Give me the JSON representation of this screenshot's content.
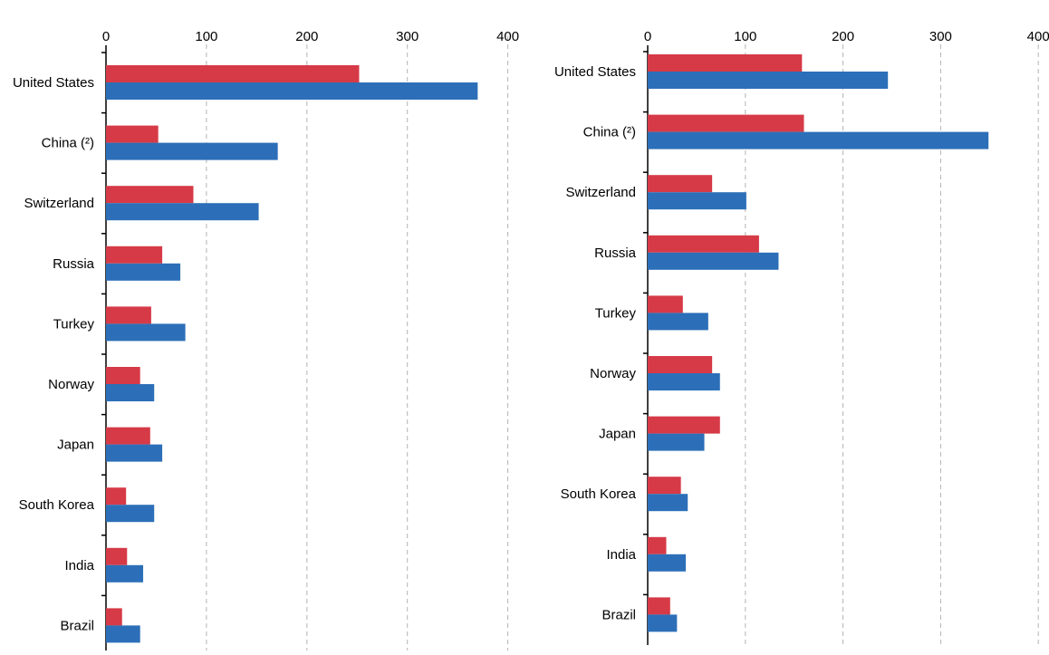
{
  "colors": {
    "series_a": "#d63a47",
    "series_b": "#2c6fb8",
    "grid": "#b3b3b3",
    "axis": "#000000"
  },
  "chart_data": [
    {
      "type": "bar",
      "orientation": "horizontal",
      "xlim": [
        0,
        400
      ],
      "ticks": [
        0,
        100,
        200,
        300,
        400
      ],
      "grid": "vertical dashed",
      "categories": [
        "United States",
        "China (²)",
        "Switzerland",
        "Russia",
        "Turkey",
        "Norway",
        "Japan",
        "South Korea",
        "India",
        "Brazil"
      ],
      "series": [
        {
          "values": [
            252,
            52,
            87,
            56,
            45,
            34,
            44,
            20,
            21,
            16
          ]
        },
        {
          "values": [
            370,
            171,
            152,
            74,
            79,
            48,
            56,
            48,
            37,
            34
          ]
        }
      ]
    },
    {
      "type": "bar",
      "orientation": "horizontal",
      "xlim": [
        0,
        400
      ],
      "ticks": [
        0,
        100,
        200,
        300,
        400
      ],
      "grid": "vertical dashed",
      "categories": [
        "United States",
        "China (²)",
        "Switzerland",
        "Russia",
        "Turkey",
        "Norway",
        "Japan",
        "South Korea",
        "India",
        "Brazil"
      ],
      "series": [
        {
          "values": [
            158,
            160,
            66,
            114,
            36,
            66,
            74,
            34,
            19,
            23
          ]
        },
        {
          "values": [
            246,
            349,
            101,
            134,
            62,
            74,
            58,
            41,
            39,
            30
          ]
        }
      ]
    }
  ]
}
